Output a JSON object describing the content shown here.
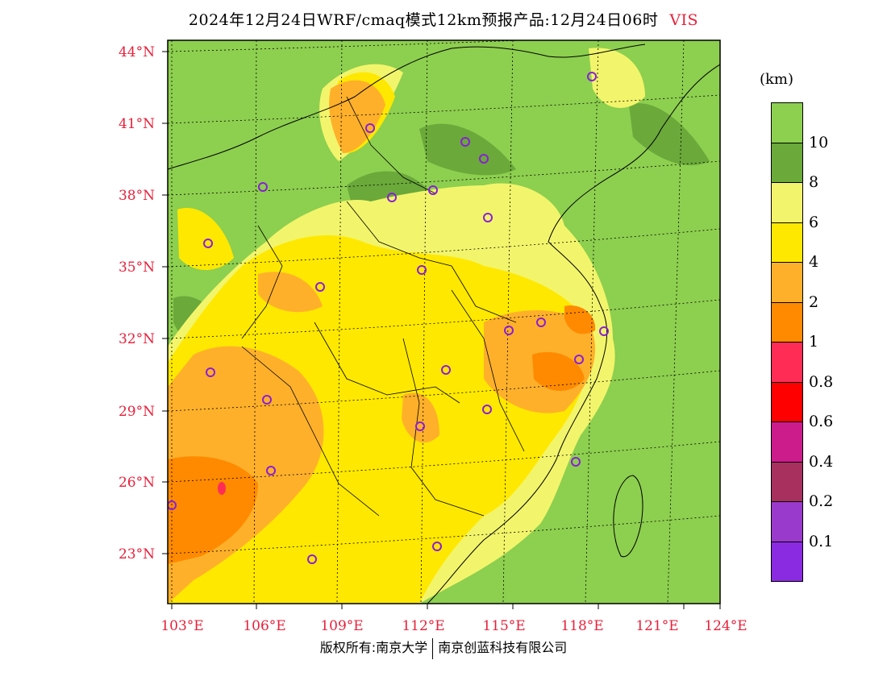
{
  "header": {
    "title": "2024年12月24日WRF/cmaq模式12km预报产品:12月24日06时",
    "variable": "VIS"
  },
  "map": {
    "lat_labels": [
      "44°N",
      "41°N",
      "38°N",
      "35°N",
      "32°N",
      "29°N",
      "26°N",
      "23°N"
    ],
    "lon_labels": [
      "103°E",
      "106°E",
      "109°E",
      "112°E",
      "115°E",
      "118°E",
      "121°E",
      "124°E"
    ],
    "field": "visibility",
    "site_marker_color": "#8a1fd6",
    "site_count": 25
  },
  "colorbar": {
    "unit": "(km)",
    "colors": [
      "#8dcf4f",
      "#6aa93a",
      "#f2f56b",
      "#ffe800",
      "#ffb02a",
      "#ff8a00",
      "#ff2d55",
      "#ff0000",
      "#cc1c8c",
      "#a8305e",
      "#9a3acc",
      "#8a2be2"
    ],
    "tick_labels": [
      "10",
      "8",
      "6",
      "4",
      "2",
      "1",
      "0.8",
      "0.6",
      "0.4",
      "0.2",
      "0.1"
    ]
  },
  "footer": {
    "left": "版权所有:南京大学",
    "right": "南京创蓝科技有限公司"
  }
}
